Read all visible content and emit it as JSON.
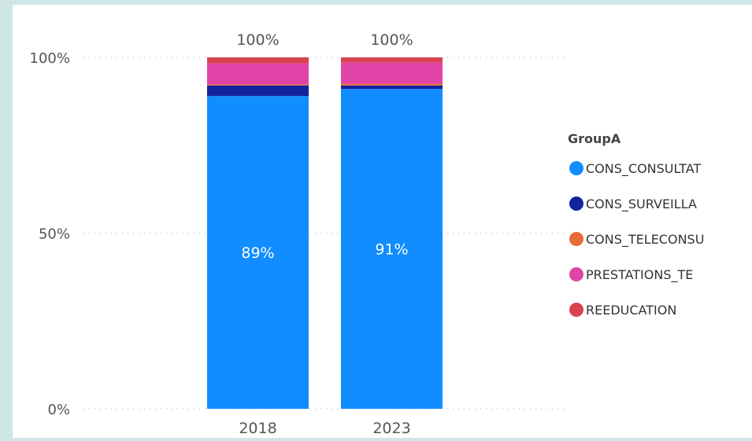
{
  "chart_data": {
    "type": "bar",
    "stacked": true,
    "percent": true,
    "categories": [
      "2018",
      "2023"
    ],
    "totals": [
      "100%",
      "100%"
    ],
    "series": [
      {
        "name": "CONS_CONSULTAT",
        "values": [
          89,
          91
        ],
        "labels": [
          "89%",
          "91%"
        ]
      },
      {
        "name": "CONS_SURVEILLA",
        "values": [
          3,
          1
        ],
        "labels": [
          "",
          ""
        ]
      },
      {
        "name": "CONS_TELECONSU",
        "values": [
          0.3,
          0.5
        ],
        "labels": [
          "",
          ""
        ]
      },
      {
        "name": "PRESTATIONS_TE",
        "values": [
          6,
          6
        ],
        "labels": [
          "",
          ""
        ]
      },
      {
        "name": "REEDUCATION",
        "values": [
          1.7,
          1.5
        ],
        "labels": [
          "",
          ""
        ]
      }
    ],
    "colors": [
      "#118dff",
      "#12239e",
      "#e66c37",
      "#e044a7",
      "#d9434f"
    ],
    "yticks": [
      {
        "value": 0,
        "label": "0%"
      },
      {
        "value": 50,
        "label": "50%"
      },
      {
        "value": 100,
        "label": "100%"
      }
    ],
    "ylim": [
      0,
      100
    ],
    "grid": true,
    "legend": {
      "title": "GroupA",
      "position": "right"
    }
  }
}
